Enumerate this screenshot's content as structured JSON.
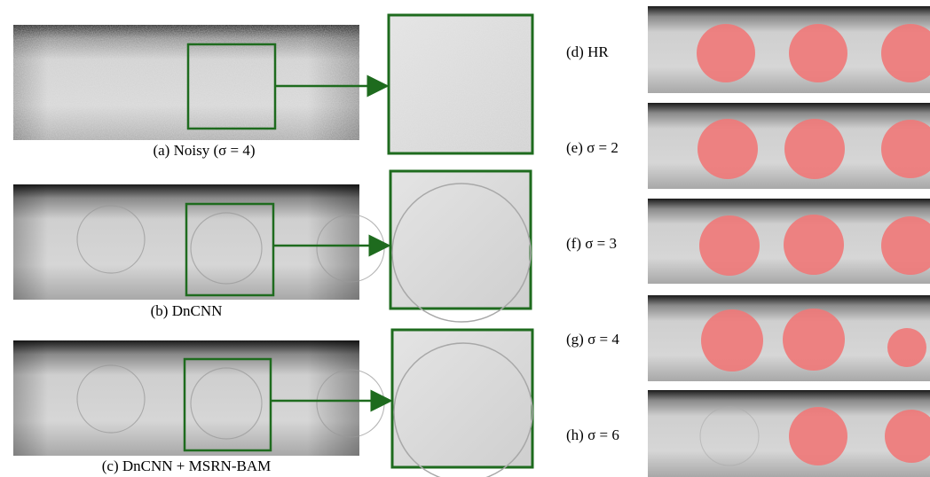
{
  "left_panels": [
    {
      "caption": "(a) Noisy (σ = 4)"
    },
    {
      "caption": "(b) DnCNN"
    },
    {
      "caption": "(c) DnCNN + MSRN-BAM"
    }
  ],
  "right_panels": [
    {
      "caption": "(d) HR"
    },
    {
      "caption": "(e) σ = 2"
    },
    {
      "caption": "(f) σ = 3"
    },
    {
      "caption": "(g) σ = 4"
    },
    {
      "caption": "(h) σ = 6"
    }
  ]
}
